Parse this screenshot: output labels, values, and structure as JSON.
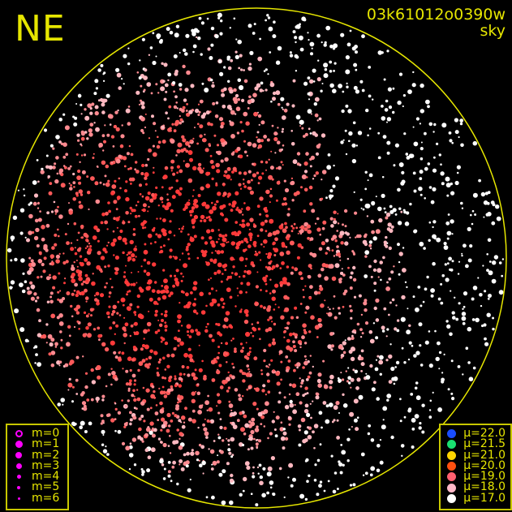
{
  "direction_label": "NE",
  "title": "03k61012o0390w",
  "subtitle": "sky",
  "frame_color": "#e6e600",
  "magnitude_legend": {
    "marker_color": "#ff00ff",
    "items": [
      {
        "label": "m=0",
        "style": "ring"
      },
      {
        "label": "m=1",
        "style": "dot"
      },
      {
        "label": "m=2",
        "style": "dot"
      },
      {
        "label": "m=3",
        "style": "dot"
      },
      {
        "label": "m=4",
        "style": "dot"
      },
      {
        "label": "m=5",
        "style": "dot"
      },
      {
        "label": "m=6",
        "style": "dot"
      }
    ]
  },
  "mu_legend": {
    "items": [
      {
        "label": "μ=22.0",
        "color": "#1a4dff"
      },
      {
        "label": "μ=21.5",
        "color": "#19e070"
      },
      {
        "label": "μ=21.0",
        "color": "#ffd400"
      },
      {
        "label": "μ=20.0",
        "color": "#ff5010"
      },
      {
        "label": "μ=19.0",
        "color": "#ff6070"
      },
      {
        "label": "μ=18.0",
        "color": "#ffb8c8"
      },
      {
        "label": "μ=17.0",
        "color": "#ffffff"
      }
    ]
  }
}
